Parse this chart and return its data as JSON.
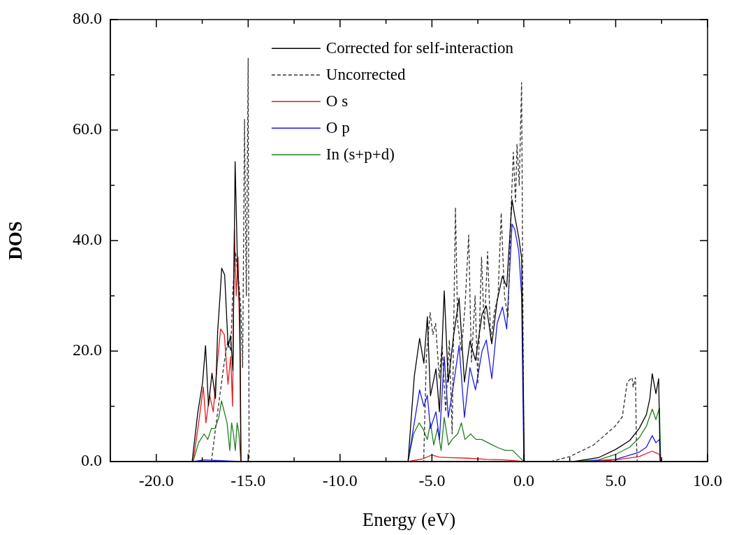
{
  "chart_data": {
    "type": "line",
    "xlabel": "Energy (eV)",
    "ylabel": "DOS",
    "xlim": [
      -22.5,
      10
    ],
    "ylim": [
      0,
      80
    ],
    "xticks": [
      {
        "value": -22.5,
        "label": null
      },
      {
        "value": -20,
        "label": "-20.0"
      },
      {
        "value": -17.5,
        "label": null
      },
      {
        "value": -15,
        "label": "-15.0"
      },
      {
        "value": -12.5,
        "label": null
      },
      {
        "value": -10,
        "label": "-10.0"
      },
      {
        "value": -7.5,
        "label": null
      },
      {
        "value": -5,
        "label": "-5.0"
      },
      {
        "value": -2.5,
        "label": null
      },
      {
        "value": 0,
        "label": "0.0"
      },
      {
        "value": 2.5,
        "label": null
      },
      {
        "value": 5,
        "label": "5.0"
      },
      {
        "value": 7.5,
        "label": null
      },
      {
        "value": 10,
        "label": "10.0"
      }
    ],
    "yticks": [
      {
        "value": 0,
        "label": "0.0"
      },
      {
        "value": 10,
        "label": null
      },
      {
        "value": 20,
        "label": "20.0"
      },
      {
        "value": 30,
        "label": null
      },
      {
        "value": 40,
        "label": "40.0"
      },
      {
        "value": 50,
        "label": null
      },
      {
        "value": 60,
        "label": "60.0"
      },
      {
        "value": 70,
        "label": null
      },
      {
        "value": 80,
        "label": "80.0"
      }
    ],
    "grid": false,
    "legend": "top",
    "marker": "none",
    "series": [
      {
        "name": "Corrected for self-interaction",
        "color": "#000000",
        "line_style": "solid",
        "x": [
          -18.05,
          -17.74,
          -17.48,
          -17.32,
          -17.16,
          -16.97,
          -16.78,
          -16.66,
          -16.53,
          -16.44,
          -16.28,
          -16.09,
          -15.96,
          -15.83,
          -15.71,
          -15.58,
          -15.45,
          -15.39,
          -6.3,
          -5.96,
          -5.67,
          -5.44,
          -5.25,
          -5.08,
          -4.78,
          -4.59,
          -4.33,
          -4.11,
          -3.82,
          -3.52,
          -3.23,
          -2.93,
          -2.63,
          -2.27,
          -2.04,
          -1.74,
          -1.45,
          -1.16,
          -0.93,
          -0.64,
          -0.49,
          -0.27,
          -0.12,
          0.03,
          2.7,
          4.06,
          5.0,
          5.76,
          6.28,
          6.67,
          6.86,
          6.99,
          7.19,
          7.34,
          7.42
        ],
        "values": [
          0,
          8.9,
          14.3,
          21,
          10.1,
          16,
          11.4,
          23.6,
          30,
          35,
          33.8,
          20.7,
          22.8,
          16.5,
          54.3,
          35.4,
          27,
          0,
          0,
          15.4,
          22.3,
          17.8,
          26.2,
          11.9,
          16.8,
          9,
          30.9,
          14.4,
          22.8,
          29.6,
          14.4,
          21.8,
          18.3,
          26.7,
          28.2,
          21.3,
          29.1,
          33.6,
          31.6,
          47.4,
          44.4,
          40.5,
          36.9,
          0,
          0,
          0.7,
          2.2,
          3.8,
          6,
          8.5,
          11.4,
          15.9,
          12.3,
          15,
          0
        ]
      },
      {
        "name": "Uncorrected",
        "color": "#333333",
        "line_style": "dashed",
        "x": [
          -17,
          -16.7,
          -16.5,
          -16.3,
          -16.1,
          -15.95,
          -15.85,
          -15.7,
          -15.55,
          -15.4,
          -15.3,
          -15.2,
          -15.1,
          -15,
          -14.95,
          -5.45,
          -5.3,
          -5.1,
          -4.95,
          -4.8,
          -4.6,
          -4.45,
          -4.25,
          -4.05,
          -3.9,
          -3.72,
          -3.6,
          -3.4,
          -3.2,
          -3,
          -2.85,
          -2.65,
          -2.5,
          -2.3,
          -2.15,
          -1.97,
          -1.8,
          -1.6,
          -1.4,
          -1.23,
          -1.05,
          -0.86,
          -0.7,
          -0.57,
          -0.45,
          -0.37,
          -0.25,
          -0.12,
          0,
          1.46,
          2.5,
          3.8,
          4.97,
          5.36,
          5.63,
          5.89,
          5.95,
          6.08,
          6.12,
          6.17
        ],
        "values": [
          0,
          8,
          13,
          18,
          22,
          20,
          30,
          38,
          34,
          28,
          17,
          62,
          30,
          73,
          0,
          0,
          19,
          27,
          23,
          25,
          15,
          21,
          9,
          22,
          5,
          46,
          25,
          20,
          28,
          41,
          18,
          30,
          14,
          37,
          24,
          38,
          22,
          27,
          30,
          45,
          30,
          26,
          45,
          56,
          47,
          57.5,
          50,
          68.6,
          0,
          0,
          0.9,
          3,
          6.4,
          8.1,
          14.4,
          15.2,
          13.5,
          15.2,
          5.1,
          0
        ]
      },
      {
        "name": "O s",
        "color": "#e8191c",
        "line_style": "solid",
        "x": [
          -18,
          -17.74,
          -17.44,
          -17.3,
          -17.1,
          -16.9,
          -16.7,
          -16.5,
          -16.3,
          -16.1,
          -15.95,
          -15.85,
          -15.75,
          -15.65,
          -15.55,
          -15.45,
          -15.4,
          -6.3,
          -5.5,
          -5,
          -4.6,
          -4,
          -3,
          -2,
          -1,
          0,
          3.8,
          5,
          6.28,
          6.99,
          7.25,
          7.38,
          7.45
        ],
        "values": [
          0,
          5.9,
          13.5,
          7,
          12,
          9,
          17,
          24,
          23,
          14,
          19,
          10,
          42,
          30,
          37,
          20,
          0,
          0,
          0.5,
          1.2,
          0.8,
          0.7,
          0.6,
          0.4,
          0.3,
          0,
          0,
          0.3,
          0.9,
          1.9,
          1.5,
          1.3,
          0
        ]
      },
      {
        "name": "O p",
        "color": "#1a1ae6",
        "line_style": "solid",
        "x": [
          -18,
          -17.4,
          -15.4,
          -6.3,
          -5.96,
          -5.67,
          -5.44,
          -5.25,
          -5.08,
          -4.78,
          -4.59,
          -4.33,
          -4.11,
          -3.82,
          -3.52,
          -3.23,
          -2.93,
          -2.63,
          -2.27,
          -2.04,
          -1.74,
          -1.45,
          -1.16,
          -0.93,
          -0.64,
          -0.49,
          -0.27,
          -0.12,
          0,
          3.15,
          5,
          6.28,
          6.67,
          6.99,
          7.19,
          7.38,
          7.45
        ],
        "values": [
          0,
          0.3,
          0,
          0,
          7,
          13,
          10,
          12,
          6,
          9,
          4,
          19,
          8,
          14,
          21,
          8,
          17,
          13,
          20,
          22,
          15,
          25,
          28,
          24,
          43,
          42,
          38,
          30,
          0,
          0,
          0.4,
          1.7,
          2.6,
          4.7,
          3.4,
          4,
          0
        ]
      },
      {
        "name": "In (s+p+d)",
        "color": "#1f7f1f",
        "line_style": "solid",
        "x": [
          -18,
          -17.7,
          -17.4,
          -17.2,
          -17,
          -16.8,
          -16.6,
          -16.45,
          -16.3,
          -16.15,
          -16,
          -15.9,
          -15.8,
          -15.7,
          -15.6,
          -15.5,
          -15.4,
          -6.3,
          -6,
          -5.7,
          -5.5,
          -5.25,
          -5.08,
          -4.9,
          -4.7,
          -4.5,
          -4.33,
          -4.1,
          -3.9,
          -3.6,
          -3.4,
          -3.2,
          -2.9,
          -2.6,
          -2.3,
          -2,
          -1.7,
          -1.4,
          -1,
          -0.6,
          -0.3,
          0,
          2.76,
          4.06,
          5,
          5.76,
          6.28,
          6.67,
          6.99,
          7.19,
          7.38,
          7.45
        ],
        "values": [
          0,
          3.4,
          5,
          4,
          6,
          6,
          8,
          11,
          9,
          7,
          2,
          7,
          5,
          2,
          7,
          5,
          0,
          0,
          5,
          7,
          6,
          4,
          7,
          3,
          6,
          2,
          8,
          3,
          4,
          5,
          7,
          4,
          5,
          4,
          4,
          3.5,
          3,
          2.5,
          2,
          2,
          1,
          0,
          0,
          0.3,
          1.3,
          2.6,
          4.3,
          6.4,
          9.5,
          7.6,
          9.7,
          0
        ]
      }
    ]
  }
}
